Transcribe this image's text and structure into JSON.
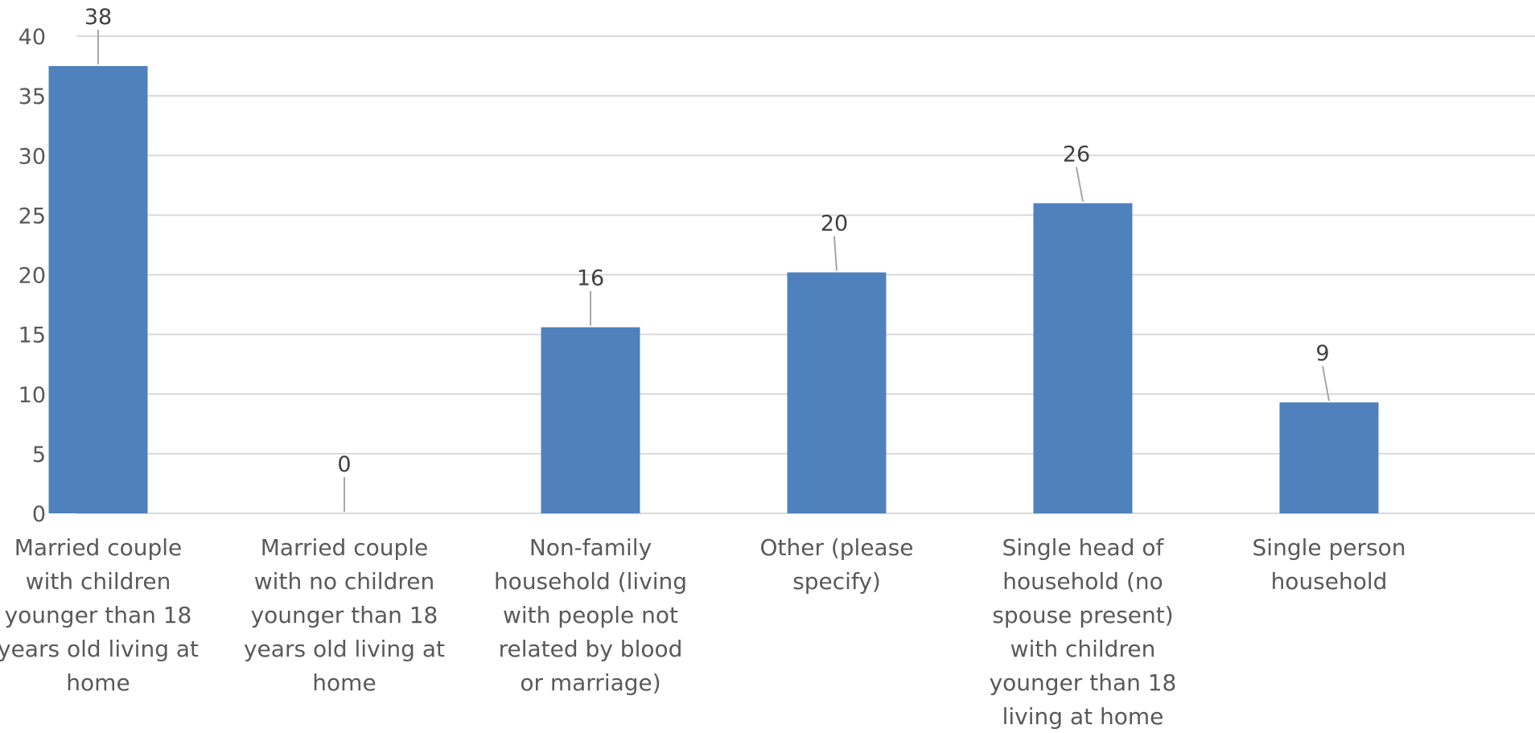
{
  "chart_data": {
    "type": "bar",
    "title": "",
    "xlabel": "",
    "ylabel": "",
    "ylim": [
      0,
      40
    ],
    "yticks": [
      0,
      5,
      10,
      15,
      20,
      25,
      30,
      35,
      40
    ],
    "grid": true,
    "legend": "none",
    "categories": [
      [
        "Married couple",
        "with children",
        "younger than 18",
        "years old living at",
        "home"
      ],
      [
        "Married couple",
        "with no children",
        "younger than 18",
        "years old living at",
        "home"
      ],
      [
        "Non-family",
        "household (living",
        "with people not",
        "related by blood",
        "or marriage)"
      ],
      [
        "Other (please",
        "specify)"
      ],
      [
        "Single head of",
        "household (no",
        "spouse present)",
        "with children",
        "younger than 18",
        "living at home"
      ],
      [
        "Single person",
        "household"
      ]
    ],
    "values": [
      37.5,
      0,
      15.6,
      20.2,
      26.0,
      9.3
    ],
    "data_labels": [
      "38",
      "0",
      "16",
      "20",
      "26",
      "9"
    ],
    "colors": {
      "bar": "#4f81bd",
      "grid": "#d9d9d9",
      "axis_text": "#595959",
      "data_label": "#404040",
      "leader_line": "#a6a6a6"
    }
  }
}
